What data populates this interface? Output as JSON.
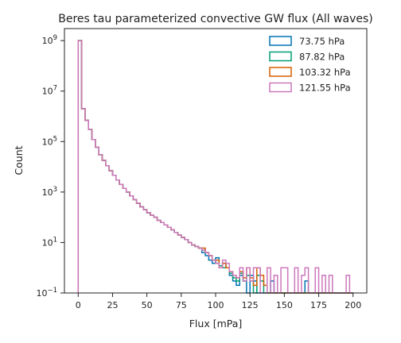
{
  "chart_data": {
    "type": "histogram-step",
    "title": "Beres tau parameterized convective GW flux (All waves)",
    "xlabel": "Flux [mPa]",
    "ylabel": "Count",
    "xlim": [
      -10,
      210
    ],
    "ylim": [
      0.1,
      3000000000.0
    ],
    "yscale": "log",
    "bin_width": 2.5,
    "x_ticks": [
      0,
      25,
      50,
      75,
      100,
      125,
      150,
      175,
      200
    ],
    "y_ticks": [
      {
        "value": 0.1,
        "base": "10",
        "exp": "−1"
      },
      {
        "value": 10,
        "base": "10",
        "exp": "1"
      },
      {
        "value": 1000,
        "base": "10",
        "exp": "3"
      },
      {
        "value": 100000,
        "base": "10",
        "exp": "5"
      },
      {
        "value": 10000000,
        "base": "10",
        "exp": "7"
      },
      {
        "value": 1000000000,
        "base": "10",
        "exp": "9"
      }
    ],
    "grid": false,
    "legend_position": "top-right",
    "series": [
      {
        "name": "73.75 hPa",
        "color": "#0173b2",
        "values": [
          1000000000.0,
          2000000.0,
          700000.0,
          300000.0,
          120000.0,
          60000.0,
          30000.0,
          18000.0,
          11000.0,
          7000.0,
          4600.0,
          3000.0,
          2000.0,
          1400.0,
          1000.0,
          700.0,
          500.0,
          360.0,
          260.0,
          200.0,
          150.0,
          120.0,
          100.0,
          75,
          62,
          50,
          40,
          32,
          25,
          20,
          16,
          13,
          10,
          8,
          7,
          6,
          4,
          3,
          2,
          1.5,
          2.5,
          1,
          1.5,
          1,
          0.5,
          0.3,
          0.2,
          0.5,
          0.3,
          0.1,
          0.5,
          0.3,
          0.1,
          0.1,
          0.1,
          0.1,
          0.3,
          0.1,
          0.1,
          0.1,
          0.1,
          0.1,
          0.1,
          0.1,
          0.1,
          0.1,
          0.3,
          0.1,
          0.1,
          0.1,
          0.1,
          0.1,
          0.1,
          0.1,
          0.1,
          0.1,
          0.1,
          0.1,
          0.1,
          0.1
        ]
      },
      {
        "name": "87.82 hPa",
        "color": "#029e73",
        "values": [
          1000000000.0,
          2000000.0,
          700000.0,
          300000.0,
          120000.0,
          60000.0,
          30000.0,
          18000.0,
          11000.0,
          7000.0,
          4600.0,
          3000.0,
          2000.0,
          1400.0,
          1000.0,
          700.0,
          500.0,
          360.0,
          260.0,
          200.0,
          150.0,
          120.0,
          100.0,
          75,
          62,
          50,
          40,
          32,
          25,
          20,
          16,
          13,
          10,
          8,
          7,
          6,
          5,
          4,
          3,
          2,
          1.5,
          1.2,
          1,
          1,
          0.6,
          0.4,
          0.3,
          0.6,
          0.3,
          0.5,
          0.3,
          0.1,
          0.5,
          0.3,
          0.1,
          0.1,
          0.1,
          0.1,
          0.1,
          0.1,
          0.1,
          0.1,
          0.1,
          0.1,
          0.1,
          0.1,
          0.1,
          0.1,
          0.1,
          0.1,
          0.1,
          0.1,
          0.1,
          0.1,
          0.1,
          0.1,
          0.1,
          0.1,
          0.1,
          0.1
        ]
      },
      {
        "name": "103.32 hPa",
        "color": "#d55e00",
        "values": [
          1000000000.0,
          2000000.0,
          700000.0,
          300000.0,
          120000.0,
          60000.0,
          30000.0,
          18000.0,
          11000.0,
          7000.0,
          4600.0,
          3000.0,
          2000.0,
          1400.0,
          1000.0,
          700.0,
          500.0,
          360.0,
          260.0,
          200.0,
          150.0,
          120.0,
          100.0,
          75,
          62,
          50,
          40,
          32,
          25,
          20,
          16,
          13,
          10,
          8,
          7,
          6,
          6,
          4,
          3,
          2,
          2,
          1,
          1.5,
          1,
          0.7,
          0.5,
          0.4,
          0.7,
          0.4,
          1,
          0.4,
          0.2,
          1,
          0.5,
          0.2,
          0.1,
          0.1,
          0.1,
          0.1,
          0.1,
          0.1,
          0.1,
          0.1,
          0.1,
          0.1,
          0.1,
          0.1,
          0.1,
          0.1,
          0.1,
          0.1,
          0.1,
          0.1,
          0.1,
          0.1,
          0.1,
          0.1,
          0.1,
          0.1,
          0.1
        ]
      },
      {
        "name": "121.55 hPa",
        "color": "#cc78bc",
        "values": [
          1000000000.0,
          2000000.0,
          700000.0,
          300000.0,
          120000.0,
          60000.0,
          30000.0,
          18000.0,
          11000.0,
          7000.0,
          4600.0,
          3000.0,
          2000.0,
          1400.0,
          1000.0,
          700.0,
          500.0,
          360.0,
          260.0,
          200.0,
          150.0,
          120.0,
          100.0,
          75,
          62,
          50,
          40,
          32,
          25,
          20,
          16,
          13,
          10,
          8,
          7,
          6,
          5,
          4,
          3,
          2,
          1.5,
          1,
          2,
          1.5,
          0.7,
          0.5,
          0.4,
          1,
          0.3,
          1,
          0.3,
          1,
          1,
          0.1,
          0.1,
          1,
          0.1,
          0.5,
          0.1,
          1,
          1,
          0.1,
          0.1,
          1,
          0.1,
          0.5,
          1,
          0.1,
          0.1,
          1,
          0.1,
          0.5,
          0.1,
          0.5,
          0.1,
          0.1,
          0.1,
          0.1,
          0.5,
          0.1
        ]
      }
    ]
  }
}
